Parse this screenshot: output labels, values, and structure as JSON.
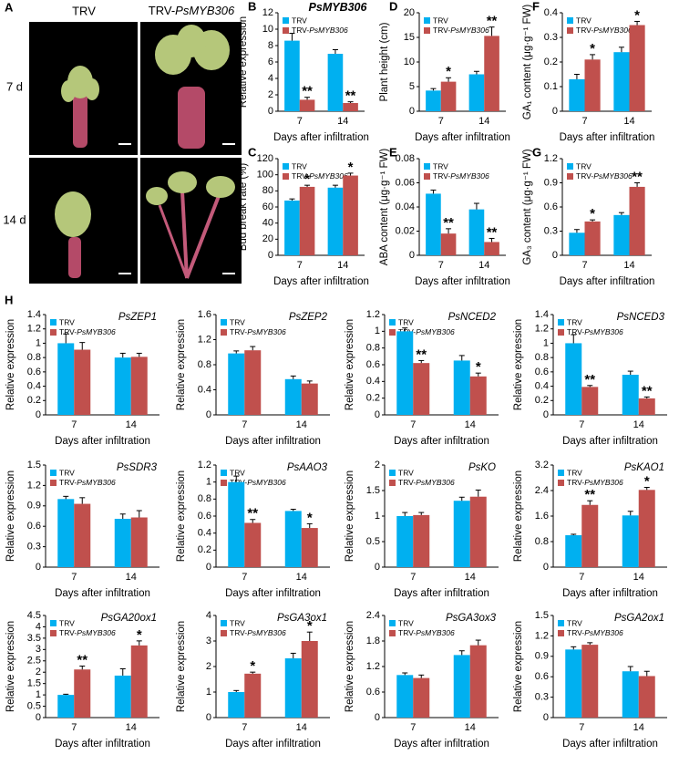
{
  "photo_panel": {
    "label": "A",
    "columns": [
      "TRV",
      "TRV-PsMYB306"
    ],
    "rows": [
      "7 d",
      "14 d"
    ]
  },
  "chart_data": [
    {
      "type": "bar",
      "panel": "B",
      "title": "PsMYB306",
      "ylabel": "Relative expression",
      "xlabel": "Days after infiltration",
      "categories": [
        "7",
        "14"
      ],
      "ylim": [
        0,
        12
      ],
      "yticks": [
        0,
        2,
        4,
        6,
        8,
        10,
        12
      ],
      "series": [
        {
          "name": "TRV",
          "color": "#00b0f0",
          "values": [
            8.6,
            7.0
          ],
          "errors": [
            0.9,
            0.5
          ]
        },
        {
          "name": "TRV-PsMYB306",
          "color": "#c0504d",
          "values": [
            1.4,
            1.0
          ],
          "errors": [
            0.3,
            0.15
          ],
          "annotations": [
            "**",
            "**"
          ]
        }
      ]
    },
    {
      "type": "bar",
      "panel": "C",
      "ylabel": "Bud break rate (%)",
      "xlabel": "Days after infiltration",
      "categories": [
        "7",
        "14"
      ],
      "ylim": [
        0,
        120
      ],
      "yticks": [
        0,
        20,
        40,
        60,
        80,
        100,
        120
      ],
      "series": [
        {
          "name": "TRV",
          "color": "#00b0f0",
          "values": [
            68,
            84
          ],
          "errors": [
            2,
            3
          ]
        },
        {
          "name": "TRV-PsMYB306",
          "color": "#c0504d",
          "values": [
            85,
            99
          ],
          "errors": [
            2,
            3
          ],
          "annotations": [
            "*",
            "*"
          ]
        }
      ]
    },
    {
      "type": "bar",
      "panel": "D",
      "ylabel": "Plant height (cm)",
      "xlabel": "Days after infiltration",
      "categories": [
        "7",
        "14"
      ],
      "ylim": [
        0,
        20
      ],
      "yticks": [
        0,
        5,
        10,
        15,
        20
      ],
      "series": [
        {
          "name": "TRV",
          "color": "#00b0f0",
          "values": [
            4.2,
            7.5
          ],
          "errors": [
            0.4,
            0.6
          ]
        },
        {
          "name": "TRV-PsMYB306",
          "color": "#c0504d",
          "values": [
            6.0,
            15.3
          ],
          "errors": [
            0.8,
            1.8
          ],
          "annotations": [
            "*",
            "**"
          ]
        }
      ]
    },
    {
      "type": "bar",
      "panel": "E",
      "ylabel": "ABA content (μg·g⁻¹ FW)",
      "xlabel": "Days after infiltration",
      "categories": [
        "7",
        "14"
      ],
      "ylim": [
        0,
        0.08
      ],
      "yticks": [
        0,
        0.02,
        0.04,
        0.06,
        0.08
      ],
      "series": [
        {
          "name": "TRV",
          "color": "#00b0f0",
          "values": [
            0.051,
            0.038
          ],
          "errors": [
            0.003,
            0.005
          ]
        },
        {
          "name": "TRV-PsMYB306",
          "color": "#c0504d",
          "values": [
            0.018,
            0.011
          ],
          "errors": [
            0.004,
            0.003
          ],
          "annotations": [
            "**",
            "**"
          ]
        }
      ]
    },
    {
      "type": "bar",
      "panel": "F",
      "ylabel": "GA₁ content (μg·g⁻¹ FW)",
      "xlabel": "Days after infiltration",
      "categories": [
        "7",
        "14"
      ],
      "ylim": [
        0,
        0.4
      ],
      "yticks": [
        0,
        0.1,
        0.2,
        0.3,
        0.4
      ],
      "series": [
        {
          "name": "TRV",
          "color": "#00b0f0",
          "values": [
            0.13,
            0.24
          ],
          "errors": [
            0.02,
            0.02
          ]
        },
        {
          "name": "TRV-PsMYB306",
          "color": "#c0504d",
          "values": [
            0.21,
            0.35
          ],
          "errors": [
            0.02,
            0.015
          ],
          "annotations": [
            "*",
            "*"
          ]
        }
      ]
    },
    {
      "type": "bar",
      "panel": "G",
      "ylabel": "GA₃ content (μg·g⁻¹ FW)",
      "xlabel": "Days after infiltration",
      "categories": [
        "7",
        "14"
      ],
      "ylim": [
        0,
        1.2
      ],
      "yticks": [
        0,
        0.3,
        0.6,
        0.9,
        1.2
      ],
      "series": [
        {
          "name": "TRV",
          "color": "#00b0f0",
          "values": [
            0.28,
            0.5
          ],
          "errors": [
            0.04,
            0.03
          ]
        },
        {
          "name": "TRV-PsMYB306",
          "color": "#c0504d",
          "values": [
            0.42,
            0.85
          ],
          "errors": [
            0.02,
            0.05
          ],
          "annotations": [
            "*",
            "**"
          ]
        }
      ]
    },
    {
      "type": "bar",
      "panel": "H",
      "title": "PsZEP1",
      "ylabel": "Relative expression",
      "xlabel": "Days after infiltration",
      "categories": [
        "7",
        "14"
      ],
      "ylim": [
        0,
        1.4
      ],
      "yticks": [
        0,
        0.2,
        0.4,
        0.6,
        0.8,
        1,
        1.2,
        1.4
      ],
      "series": [
        {
          "name": "TRV",
          "color": "#00b0f0",
          "values": [
            1.0,
            0.8
          ],
          "errors": [
            0.13,
            0.06
          ]
        },
        {
          "name": "TRV-PsMYB306",
          "color": "#c0504d",
          "values": [
            0.91,
            0.81
          ],
          "errors": [
            0.1,
            0.05
          ]
        }
      ]
    },
    {
      "type": "bar",
      "title": "PsZEP2",
      "ylabel": "Relative expression",
      "xlabel": "Days after infiltration",
      "categories": [
        "7",
        "14"
      ],
      "ylim": [
        0,
        1.6
      ],
      "yticks": [
        0,
        0.4,
        0.8,
        1.2,
        1.6
      ],
      "series": [
        {
          "name": "TRV",
          "color": "#00b0f0",
          "values": [
            0.98,
            0.57
          ],
          "errors": [
            0.04,
            0.05
          ]
        },
        {
          "name": "TRV-PsMYB306",
          "color": "#c0504d",
          "values": [
            1.03,
            0.5
          ],
          "errors": [
            0.06,
            0.04
          ]
        }
      ]
    },
    {
      "type": "bar",
      "title": "PsNCED2",
      "ylabel": "Relative expression",
      "xlabel": "Days after infiltration",
      "categories": [
        "7",
        "14"
      ],
      "ylim": [
        0,
        1.2
      ],
      "yticks": [
        0,
        0.2,
        0.4,
        0.6,
        0.8,
        1,
        1.2
      ],
      "series": [
        {
          "name": "TRV",
          "color": "#00b0f0",
          "values": [
            1.0,
            0.65
          ],
          "errors": [
            0.04,
            0.06
          ]
        },
        {
          "name": "TRV-PsMYB306",
          "color": "#c0504d",
          "values": [
            0.62,
            0.46
          ],
          "errors": [
            0.03,
            0.04
          ],
          "annotations": [
            "**",
            "*"
          ]
        }
      ]
    },
    {
      "type": "bar",
      "title": "PsNCED3",
      "ylabel": "Relative expression",
      "xlabel": "Days after infiltration",
      "categories": [
        "7",
        "14"
      ],
      "ylim": [
        0,
        1.4
      ],
      "yticks": [
        0,
        0.2,
        0.4,
        0.6,
        0.8,
        1,
        1.2,
        1.4
      ],
      "series": [
        {
          "name": "TRV",
          "color": "#00b0f0",
          "values": [
            1.0,
            0.56
          ],
          "errors": [
            0.12,
            0.05
          ]
        },
        {
          "name": "TRV-PsMYB306",
          "color": "#c0504d",
          "values": [
            0.39,
            0.23
          ],
          "errors": [
            0.02,
            0.02
          ],
          "annotations": [
            "**",
            "**"
          ]
        }
      ]
    },
    {
      "type": "bar",
      "title": "PsSDR3",
      "ylabel": "Relative expression",
      "xlabel": "Days after infiltration",
      "categories": [
        "7",
        "14"
      ],
      "ylim": [
        0,
        1.5
      ],
      "yticks": [
        0,
        0.3,
        0.6,
        0.9,
        1.2,
        1.5
      ],
      "series": [
        {
          "name": "TRV",
          "color": "#00b0f0",
          "values": [
            1.0,
            0.71
          ],
          "errors": [
            0.04,
            0.07
          ]
        },
        {
          "name": "TRV-PsMYB306",
          "color": "#c0504d",
          "values": [
            0.93,
            0.73
          ],
          "errors": [
            0.09,
            0.1
          ]
        }
      ]
    },
    {
      "type": "bar",
      "title": "PsAAO3",
      "ylabel": "Relative expression",
      "xlabel": "Days after infiltration",
      "categories": [
        "7",
        "14"
      ],
      "ylim": [
        0,
        1.2
      ],
      "yticks": [
        0,
        0.2,
        0.4,
        0.6,
        0.8,
        1,
        1.2
      ],
      "series": [
        {
          "name": "TRV",
          "color": "#00b0f0",
          "values": [
            1.0,
            0.66
          ],
          "errors": [
            0.07,
            0.02
          ]
        },
        {
          "name": "TRV-PsMYB306",
          "color": "#c0504d",
          "values": [
            0.52,
            0.46
          ],
          "errors": [
            0.04,
            0.05
          ],
          "annotations": [
            "**",
            "*"
          ]
        }
      ]
    },
    {
      "type": "bar",
      "title": "PsKO",
      "ylabel": "Relative expression",
      "xlabel": "Days after infiltration",
      "categories": [
        "7",
        "14"
      ],
      "ylim": [
        0,
        2
      ],
      "yticks": [
        0,
        0.5,
        1,
        1.5,
        2
      ],
      "series": [
        {
          "name": "TRV",
          "color": "#00b0f0",
          "values": [
            1.0,
            1.3
          ],
          "errors": [
            0.07,
            0.07
          ]
        },
        {
          "name": "TRV-PsMYB306",
          "color": "#c0504d",
          "values": [
            1.02,
            1.38
          ],
          "errors": [
            0.05,
            0.13
          ]
        }
      ]
    },
    {
      "type": "bar",
      "title": "PsKAO1",
      "ylabel": "Relative expression",
      "xlabel": "Days after infiltration",
      "categories": [
        "7",
        "14"
      ],
      "ylim": [
        0,
        3.2
      ],
      "yticks": [
        0,
        0.8,
        1.6,
        2.4,
        3.2
      ],
      "series": [
        {
          "name": "TRV",
          "color": "#00b0f0",
          "values": [
            1.0,
            1.62
          ],
          "errors": [
            0.03,
            0.13
          ]
        },
        {
          "name": "TRV-PsMYB306",
          "color": "#c0504d",
          "values": [
            1.95,
            2.42
          ],
          "errors": [
            0.13,
            0.08
          ],
          "annotations": [
            "**",
            "*"
          ]
        }
      ]
    },
    {
      "type": "bar",
      "title": "PsGA20ox1",
      "ylabel": "Relative expression",
      "xlabel": "Days after infiltration",
      "categories": [
        "7",
        "14"
      ],
      "ylim": [
        0,
        4.5
      ],
      "yticks": [
        0,
        0.5,
        1,
        1.5,
        2,
        2.5,
        3,
        3.5,
        4,
        4.5
      ],
      "series": [
        {
          "name": "TRV",
          "color": "#00b0f0",
          "values": [
            1.0,
            1.85
          ],
          "errors": [
            0.03,
            0.3
          ]
        },
        {
          "name": "TRV-PsMYB306",
          "color": "#c0504d",
          "values": [
            2.12,
            3.18
          ],
          "errors": [
            0.15,
            0.2
          ],
          "annotations": [
            "**",
            "*"
          ]
        }
      ]
    },
    {
      "type": "bar",
      "title": "PsGA3ox1",
      "ylabel": "Relative expression",
      "xlabel": "Days after infiltration",
      "categories": [
        "7",
        "14"
      ],
      "ylim": [
        0,
        4
      ],
      "yticks": [
        0,
        1,
        2,
        3,
        4
      ],
      "series": [
        {
          "name": "TRV",
          "color": "#00b0f0",
          "values": [
            1.0,
            2.32
          ],
          "errors": [
            0.06,
            0.2
          ]
        },
        {
          "name": "TRV-PsMYB306",
          "color": "#c0504d",
          "values": [
            1.72,
            3.0
          ],
          "errors": [
            0.06,
            0.35
          ],
          "annotations": [
            "*",
            "*"
          ]
        }
      ]
    },
    {
      "type": "bar",
      "title": "PsGA3ox3",
      "ylabel": "Relative expression",
      "xlabel": "Days after infiltration",
      "categories": [
        "7",
        "14"
      ],
      "ylim": [
        0,
        2.4
      ],
      "yticks": [
        0,
        0.6,
        1.2,
        1.8,
        2.4
      ],
      "series": [
        {
          "name": "TRV",
          "color": "#00b0f0",
          "values": [
            1.0,
            1.47
          ],
          "errors": [
            0.05,
            0.1
          ]
        },
        {
          "name": "TRV-PsMYB306",
          "color": "#c0504d",
          "values": [
            0.93,
            1.7
          ],
          "errors": [
            0.07,
            0.12
          ]
        }
      ]
    },
    {
      "type": "bar",
      "title": "PsGA2ox1",
      "ylabel": "Relative expression",
      "xlabel": "Days after infiltration",
      "categories": [
        "7",
        "14"
      ],
      "ylim": [
        0,
        1.5
      ],
      "yticks": [
        0,
        0.3,
        0.6,
        0.9,
        1.2,
        1.5
      ],
      "series": [
        {
          "name": "TRV",
          "color": "#00b0f0",
          "values": [
            1.0,
            0.68
          ],
          "errors": [
            0.04,
            0.07
          ]
        },
        {
          "name": "TRV-PsMYB306",
          "color": "#c0504d",
          "values": [
            1.07,
            0.61
          ],
          "errors": [
            0.03,
            0.07
          ]
        }
      ]
    }
  ]
}
